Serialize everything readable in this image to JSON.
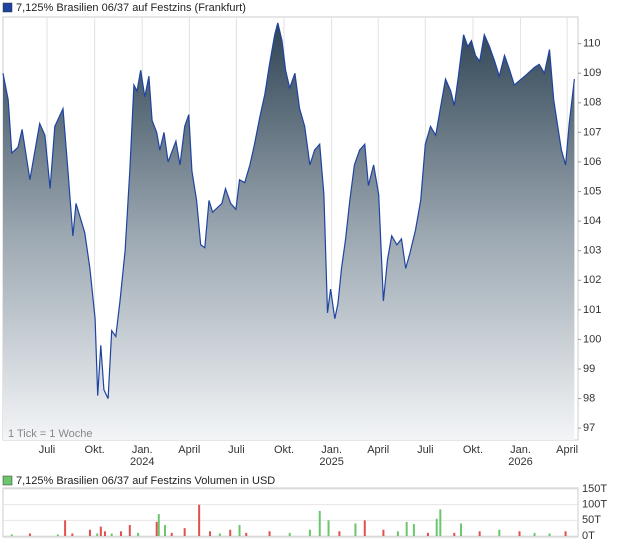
{
  "chart_data": [
    {
      "type": "area",
      "series": [
        {
          "name": "7,125% Brasilien 06/37 auf Festzins (Frankfurt)",
          "color": "#1f44a0",
          "values": [
            109.0,
            108.1,
            106.3,
            106.5,
            107.1,
            105.4,
            107.3,
            106.9,
            105.1,
            107.2,
            107.8,
            105.6,
            103.5,
            104.6,
            103.6,
            102.4,
            100.7,
            98.1,
            99.8,
            98.3,
            98.0,
            100.3,
            100.1,
            101.3,
            103.0,
            105.7,
            108.6,
            108.4,
            109.1,
            108.2,
            108.9,
            107.4,
            107.0,
            106.4,
            107.0,
            106.0,
            106.7,
            105.9,
            107.2,
            107.6,
            105.7,
            104.7,
            103.2,
            103.1,
            104.7,
            104.3,
            104.6,
            105.1,
            104.6,
            104.4,
            105.4,
            105.3,
            105.9,
            106.6,
            107.5,
            108.3,
            109.3,
            110.3,
            110.7,
            110.1,
            109.1,
            108.5,
            109.0,
            107.8,
            107.2,
            105.9,
            106.4,
            106.6,
            104.9,
            100.9,
            101.7,
            100.7,
            101.2,
            102.4,
            103.4,
            104.7,
            105.9,
            106.4,
            106.6,
            105.2,
            105.9,
            104.9,
            101.3,
            102.7,
            103.5,
            103.2,
            103.4,
            102.4,
            102.9,
            103.7,
            104.7,
            106.6,
            107.2,
            106.9,
            107.8,
            108.8,
            108.4,
            107.9,
            108.9,
            110.3,
            109.9,
            110.1,
            109.6,
            109.4,
            110.3,
            109.9,
            109.4,
            108.9,
            109.6,
            109.1,
            108.6,
            108.9,
            109.2,
            109.3,
            109.0,
            109.8,
            108.1,
            107.3,
            106.4,
            105.9,
            107.3,
            108.8
          ]
        }
      ],
      "x": [
        "2023-04-07",
        "2023-04-17",
        "2023-04-24",
        "2023-05-06",
        "2023-05-14",
        "2023-05-29",
        "2023-06-17",
        "2023-06-27",
        "2023-07-07",
        "2023-07-16",
        "2023-08-01",
        "2023-08-11",
        "2023-08-20",
        "2023-08-26",
        "2023-09-12",
        "2023-09-22",
        "2023-10-02",
        "2023-10-07",
        "2023-10-13",
        "2023-10-19",
        "2023-10-27",
        "2023-11-03",
        "2023-11-11",
        "2023-11-19",
        "2023-11-29",
        "2023-12-08",
        "2023-12-16",
        "2023-12-22",
        "2023-12-29",
        "2024-01-06",
        "2024-01-14",
        "2024-01-20",
        "2024-01-29",
        "2024-02-04",
        "2024-02-12",
        "2024-02-20",
        "2024-03-06",
        "2024-03-14",
        "2024-03-23",
        "2024-03-31",
        "2024-04-06",
        "2024-04-15",
        "2024-04-23",
        "2024-05-01",
        "2024-05-09",
        "2024-05-16",
        "2024-06-03",
        "2024-06-10",
        "2024-06-20",
        "2024-06-30",
        "2024-07-07",
        "2024-07-17",
        "2024-07-27",
        "2024-08-05",
        "2024-08-15",
        "2024-08-25",
        "2024-09-03",
        "2024-09-13",
        "2024-09-19",
        "2024-09-27",
        "2024-10-04",
        "2024-10-12",
        "2024-10-22",
        "2024-10-31",
        "2024-11-10",
        "2024-11-20",
        "2024-11-29",
        "2024-12-09",
        "2024-12-17",
        "2024-12-24",
        "2024-12-30",
        "2025-01-07",
        "2025-01-13",
        "2025-01-20",
        "2025-01-28",
        "2025-02-05",
        "2025-02-14",
        "2025-02-24",
        "2025-03-06",
        "2025-03-13",
        "2025-03-23",
        "2025-04-02",
        "2025-04-11",
        "2025-04-19",
        "2025-04-27",
        "2025-05-07",
        "2025-05-16",
        "2025-05-24",
        "2025-06-01",
        "2025-06-12",
        "2025-06-22",
        "2025-07-01",
        "2025-07-11",
        "2025-07-21",
        "2025-07-30",
        "2025-08-09",
        "2025-08-19",
        "2025-08-26",
        "2025-09-03",
        "2025-09-13",
        "2025-09-21",
        "2025-09-28",
        "2025-10-06",
        "2025-10-14",
        "2025-10-23",
        "2025-11-02",
        "2025-11-12",
        "2025-11-21",
        "2025-12-01",
        "2025-12-11",
        "2025-12-20",
        "2026-01-09",
        "2026-01-28",
        "2026-02-06",
        "2026-02-16",
        "2026-02-26",
        "2026-03-06",
        "2026-03-13",
        "2026-03-21",
        "2026-03-29",
        "2026-04-05",
        "2026-04-15"
      ],
      "xlim": [
        "2023-04-07",
        "2026-04-22"
      ],
      "xticks": [
        {
          "value": "2023-07-01",
          "label": "Juli"
        },
        {
          "value": "2023-10-01",
          "label": "Okt."
        },
        {
          "value": "2024-01-01",
          "label": "Jan.",
          "year": "2024"
        },
        {
          "value": "2024-04-01",
          "label": "April"
        },
        {
          "value": "2024-07-01",
          "label": "Juli"
        },
        {
          "value": "2024-10-01",
          "label": "Okt."
        },
        {
          "value": "2025-01-01",
          "label": "Jan.",
          "year": "2025"
        },
        {
          "value": "2025-04-01",
          "label": "April"
        },
        {
          "value": "2025-07-01",
          "label": "Juli"
        },
        {
          "value": "2025-10-01",
          "label": "Okt."
        },
        {
          "value": "2026-01-01",
          "label": "Jan.",
          "year": "2026"
        },
        {
          "value": "2026-04-01",
          "label": "April"
        }
      ],
      "ylim": [
        96.6,
        110.9
      ],
      "yticks": [
        97,
        98,
        99,
        100,
        101,
        102,
        103,
        104,
        105,
        106,
        107,
        108,
        109,
        110
      ],
      "note": "1 Tick = 1 Woche"
    },
    {
      "type": "bar",
      "series": [
        {
          "name": "7,125% Brasilien 06/37 auf Festzins Volumen in USD",
          "color": "#5cb85c",
          "values": [
            5000,
            8000,
            5000,
            50000,
            8000,
            20000,
            8000,
            30000,
            15000,
            8000,
            15000,
            35000,
            10000,
            45000,
            70000,
            35000,
            10000,
            25000,
            100000,
            15000,
            8000,
            20000,
            35000,
            10000,
            15000,
            10000,
            20000,
            80000,
            50000,
            15000,
            40000,
            50000,
            20000,
            15000,
            45000,
            38000,
            10000,
            55000,
            85000,
            10000,
            40000,
            15000,
            20000,
            15000,
            10000,
            8000,
            15000
          ],
          "colors": [
            "#6cc66c",
            "#e05050",
            "#6cc66c",
            "#e05050",
            "#e05050",
            "#e05050",
            "#6cc66c",
            "#e05050",
            "#e05050",
            "#6cc66c",
            "#e05050",
            "#e05050",
            "#6cc66c",
            "#e05050",
            "#6cc66c",
            "#6cc66c",
            "#e05050",
            "#e05050",
            "#e05050",
            "#e05050",
            "#6cc66c",
            "#e05050",
            "#6cc66c",
            "#e05050",
            "#e05050",
            "#6cc66c",
            "#6cc66c",
            "#6cc66c",
            "#6cc66c",
            "#e05050",
            "#6cc66c",
            "#e05050",
            "#e05050",
            "#6cc66c",
            "#6cc66c",
            "#6cc66c",
            "#e05050",
            "#6cc66c",
            "#6cc66c",
            "#e05050",
            "#6cc66c",
            "#e05050",
            "#6cc66c",
            "#e05050",
            "#6cc66c",
            "#6cc66c",
            "#e05050"
          ]
        }
      ],
      "x": [
        "2023-04-24",
        "2023-05-29",
        "2023-07-22",
        "2023-08-05",
        "2023-08-19",
        "2023-09-22",
        "2023-10-06",
        "2023-10-13",
        "2023-10-21",
        "2023-11-03",
        "2023-11-21",
        "2023-12-08",
        "2023-12-24",
        "2024-01-29",
        "2024-02-02",
        "2024-02-14",
        "2024-02-27",
        "2024-03-23",
        "2024-04-20",
        "2024-05-11",
        "2024-05-30",
        "2024-06-19",
        "2024-07-07",
        "2024-07-20",
        "2024-09-03",
        "2024-10-12",
        "2024-11-20",
        "2024-12-09",
        "2024-12-26",
        "2025-01-16",
        "2025-02-16",
        "2025-03-06",
        "2025-04-11",
        "2025-05-09",
        "2025-05-26",
        "2025-06-09",
        "2025-07-06",
        "2025-07-23",
        "2025-07-30",
        "2025-08-26",
        "2025-09-08",
        "2025-10-14",
        "2025-11-21",
        "2025-12-30",
        "2026-01-28",
        "2026-02-26",
        "2026-03-29"
      ],
      "xlim": [
        "2023-04-07",
        "2026-04-22"
      ],
      "ylim": [
        0,
        150000
      ],
      "yticks": [
        {
          "value": 0,
          "label": "0T"
        },
        {
          "value": 50000,
          "label": "50T"
        },
        {
          "value": 100000,
          "label": "100T"
        },
        {
          "value": 150000,
          "label": "150T"
        }
      ]
    }
  ]
}
